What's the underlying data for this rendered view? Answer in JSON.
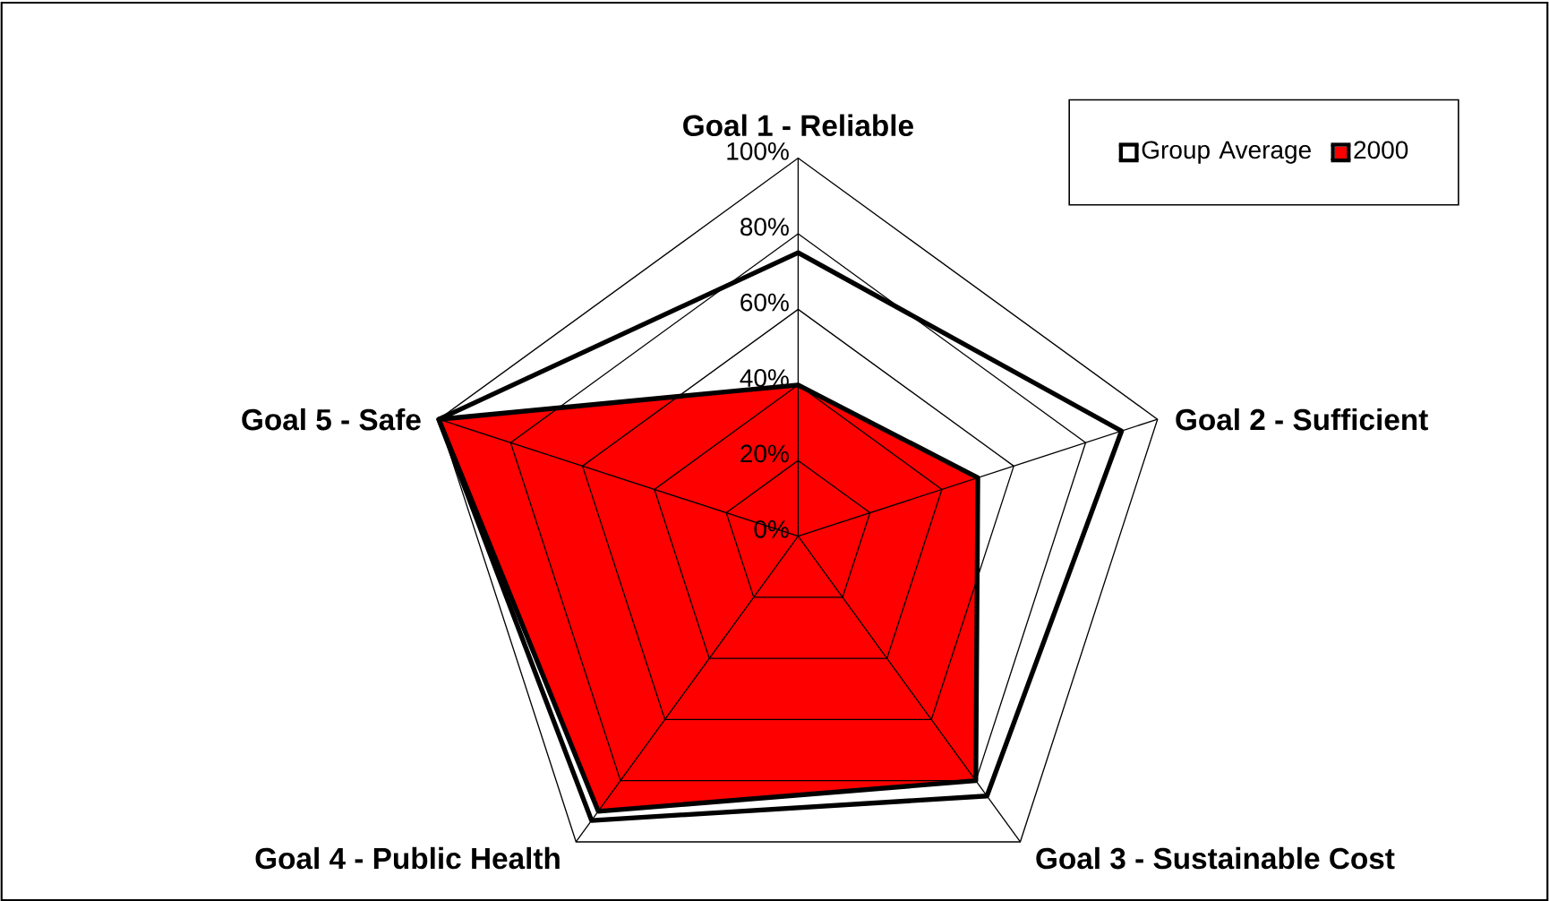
{
  "chart_data": {
    "type": "radar",
    "categories": [
      "Goal 1 - Reliable",
      "Goal 2 - Sufficient",
      "Goal 3 - Sustainable Cost",
      "Goal 4 - Public Health",
      "Goal 5 - Safe"
    ],
    "series": [
      {
        "name": "Group Average",
        "color": "#ffffff",
        "values": [
          75,
          90,
          85,
          93,
          100
        ]
      },
      {
        "name": "2000",
        "color": "#ff0000",
        "values": [
          40,
          50,
          80,
          90,
          100
        ]
      }
    ],
    "ylim": [
      0,
      100
    ],
    "yticks": [
      {
        "value": 0,
        "label": "0%"
      },
      {
        "value": 20,
        "label": "20%"
      },
      {
        "value": 40,
        "label": "40%"
      },
      {
        "value": 60,
        "label": "60%"
      },
      {
        "value": 80,
        "label": "80%"
      },
      {
        "value": 100,
        "label": "100%"
      }
    ],
    "grid": true,
    "legend": "top right"
  }
}
